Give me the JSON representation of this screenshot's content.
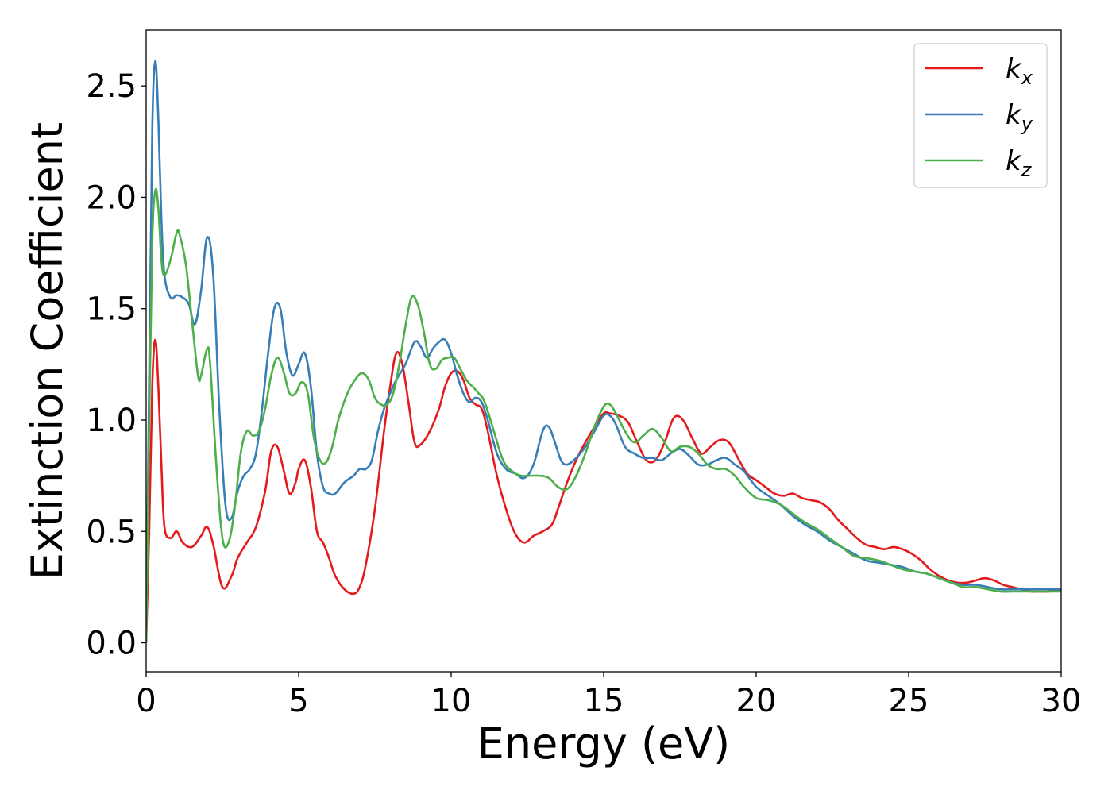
{
  "chart_data": {
    "type": "line",
    "title": "",
    "xlabel": "Energy (eV)",
    "ylabel": "Extinction Coefficient",
    "xlim": [
      0,
      30
    ],
    "ylim": [
      -0.13,
      2.75
    ],
    "xticks": [
      0,
      5,
      10,
      15,
      20,
      25,
      30
    ],
    "xtick_labels": [
      "0",
      "5",
      "10",
      "15",
      "20",
      "25",
      "30"
    ],
    "yticks": [
      0.0,
      0.5,
      1.0,
      1.5,
      2.0,
      2.5
    ],
    "ytick_labels": [
      "0.0",
      "0.5",
      "1.0",
      "1.5",
      "2.0",
      "2.5"
    ],
    "grid": false,
    "legend_position": "top-right",
    "series": [
      {
        "name": "k_x",
        "label_base": "k",
        "label_sub": "x",
        "color": "#e41a1c",
        "x": [
          0,
          0.1,
          0.2,
          0.3,
          0.4,
          0.5,
          0.6,
          0.8,
          1.0,
          1.2,
          1.5,
          1.8,
          2.0,
          2.2,
          2.5,
          2.8,
          3.0,
          3.3,
          3.6,
          3.9,
          4.1,
          4.3,
          4.5,
          4.7,
          4.9,
          5.0,
          5.2,
          5.4,
          5.6,
          5.8,
          6.0,
          6.2,
          6.5,
          6.8,
          7.0,
          7.2,
          7.5,
          7.8,
          8.0,
          8.2,
          8.4,
          8.6,
          8.8,
          9.0,
          9.3,
          9.6,
          9.8,
          10.0,
          10.2,
          10.4,
          10.6,
          10.8,
          11.0,
          11.2,
          11.5,
          11.8,
          12.1,
          12.4,
          12.7,
          13.0,
          13.3,
          13.5,
          13.8,
          14.1,
          14.4,
          14.7,
          15.0,
          15.2,
          15.5,
          15.8,
          16.1,
          16.4,
          16.7,
          17.0,
          17.3,
          17.6,
          17.9,
          18.2,
          18.5,
          18.8,
          19.1,
          19.4,
          19.7,
          20.0,
          20.3,
          20.6,
          20.9,
          21.2,
          21.5,
          21.8,
          22.1,
          22.4,
          22.7,
          23.0,
          23.3,
          23.6,
          23.9,
          24.2,
          24.5,
          24.8,
          25.1,
          25.4,
          25.7,
          26.0,
          26.3,
          26.6,
          26.9,
          27.2,
          27.5,
          27.8,
          28.1,
          28.4,
          28.7,
          29.0,
          29.3,
          29.6,
          30.0
        ],
        "y": [
          0.0,
          0.5,
          1.15,
          1.36,
          1.15,
          0.8,
          0.52,
          0.47,
          0.5,
          0.45,
          0.43,
          0.48,
          0.52,
          0.44,
          0.25,
          0.3,
          0.38,
          0.45,
          0.52,
          0.68,
          0.86,
          0.88,
          0.78,
          0.67,
          0.72,
          0.78,
          0.82,
          0.7,
          0.5,
          0.45,
          0.38,
          0.3,
          0.24,
          0.22,
          0.25,
          0.35,
          0.6,
          0.95,
          1.15,
          1.3,
          1.25,
          1.08,
          0.9,
          0.89,
          0.95,
          1.05,
          1.15,
          1.21,
          1.22,
          1.18,
          1.1,
          1.07,
          1.05,
          0.95,
          0.75,
          0.6,
          0.49,
          0.45,
          0.48,
          0.5,
          0.53,
          0.6,
          0.72,
          0.82,
          0.9,
          0.97,
          1.03,
          1.03,
          1.02,
          0.99,
          0.9,
          0.82,
          0.82,
          0.9,
          1.01,
          1.0,
          0.92,
          0.85,
          0.88,
          0.91,
          0.9,
          0.83,
          0.76,
          0.73,
          0.7,
          0.67,
          0.66,
          0.67,
          0.65,
          0.64,
          0.63,
          0.6,
          0.55,
          0.51,
          0.47,
          0.44,
          0.43,
          0.42,
          0.43,
          0.42,
          0.4,
          0.37,
          0.33,
          0.3,
          0.28,
          0.27,
          0.27,
          0.28,
          0.29,
          0.28,
          0.26,
          0.25,
          0.24,
          0.23,
          0.23,
          0.23,
          0.24
        ]
      },
      {
        "name": "k_y",
        "label_base": "k",
        "label_sub": "y",
        "color": "#377eb8",
        "x": [
          0,
          0.1,
          0.2,
          0.3,
          0.4,
          0.5,
          0.6,
          0.8,
          1.0,
          1.2,
          1.4,
          1.6,
          1.8,
          2.0,
          2.2,
          2.4,
          2.6,
          2.8,
          3.0,
          3.2,
          3.4,
          3.6,
          3.8,
          4.0,
          4.2,
          4.4,
          4.6,
          4.8,
          5.0,
          5.2,
          5.4,
          5.6,
          5.8,
          6.0,
          6.2,
          6.5,
          6.8,
          7.0,
          7.2,
          7.4,
          7.6,
          7.8,
          8.0,
          8.2,
          8.5,
          8.8,
          9.0,
          9.2,
          9.4,
          9.6,
          9.8,
          10.0,
          10.2,
          10.4,
          10.6,
          10.8,
          11.0,
          11.2,
          11.5,
          11.8,
          12.1,
          12.4,
          12.7,
          13.0,
          13.2,
          13.4,
          13.6,
          13.8,
          14.1,
          14.4,
          14.7,
          15.0,
          15.2,
          15.4,
          15.7,
          16.0,
          16.3,
          16.6,
          16.9,
          17.2,
          17.5,
          17.8,
          18.1,
          18.4,
          18.7,
          19.0,
          19.3,
          19.6,
          20.0,
          20.4,
          20.8,
          21.2,
          21.6,
          22.0,
          22.4,
          22.8,
          23.2,
          23.6,
          24.0,
          24.4,
          24.8,
          25.2,
          25.6,
          26.0,
          26.4,
          26.8,
          27.2,
          27.6,
          28.0,
          28.4,
          28.8,
          29.2,
          29.6,
          30.0
        ],
        "y": [
          0.0,
          1.2,
          2.3,
          2.61,
          2.35,
          1.9,
          1.65,
          1.55,
          1.56,
          1.55,
          1.52,
          1.43,
          1.58,
          1.82,
          1.65,
          1.05,
          0.62,
          0.56,
          0.68,
          0.75,
          0.78,
          0.85,
          1.05,
          1.3,
          1.5,
          1.5,
          1.3,
          1.2,
          1.25,
          1.3,
          1.15,
          0.85,
          0.7,
          0.67,
          0.67,
          0.72,
          0.75,
          0.78,
          0.78,
          0.82,
          0.95,
          1.05,
          1.12,
          1.18,
          1.25,
          1.35,
          1.33,
          1.28,
          1.32,
          1.35,
          1.36,
          1.3,
          1.2,
          1.12,
          1.08,
          1.1,
          1.08,
          1.0,
          0.85,
          0.78,
          0.76,
          0.74,
          0.8,
          0.95,
          0.97,
          0.9,
          0.82,
          0.8,
          0.83,
          0.88,
          0.95,
          1.02,
          1.02,
          0.98,
          0.88,
          0.85,
          0.83,
          0.83,
          0.82,
          0.85,
          0.87,
          0.84,
          0.8,
          0.8,
          0.82,
          0.83,
          0.8,
          0.77,
          0.7,
          0.66,
          0.62,
          0.57,
          0.53,
          0.5,
          0.46,
          0.43,
          0.4,
          0.37,
          0.36,
          0.35,
          0.34,
          0.32,
          0.31,
          0.29,
          0.27,
          0.26,
          0.26,
          0.25,
          0.24,
          0.24,
          0.24,
          0.24,
          0.24,
          0.24
        ]
      },
      {
        "name": "k_z",
        "label_base": "k",
        "label_sub": "z",
        "color": "#4daf4a",
        "x": [
          0,
          0.1,
          0.2,
          0.3,
          0.4,
          0.5,
          0.6,
          0.8,
          1.0,
          1.1,
          1.3,
          1.5,
          1.7,
          1.8,
          2.0,
          2.1,
          2.3,
          2.5,
          2.7,
          2.9,
          3.1,
          3.3,
          3.5,
          3.7,
          3.9,
          4.1,
          4.3,
          4.5,
          4.7,
          4.9,
          5.1,
          5.3,
          5.5,
          5.7,
          5.9,
          6.1,
          6.3,
          6.6,
          6.9,
          7.1,
          7.3,
          7.5,
          7.7,
          7.9,
          8.1,
          8.3,
          8.5,
          8.7,
          8.9,
          9.1,
          9.3,
          9.5,
          9.7,
          9.9,
          10.1,
          10.3,
          10.5,
          10.7,
          10.9,
          11.1,
          11.4,
          11.7,
          12.0,
          12.3,
          12.6,
          12.9,
          13.2,
          13.5,
          13.8,
          14.1,
          14.4,
          14.7,
          15.0,
          15.2,
          15.4,
          15.7,
          16.0,
          16.3,
          16.6,
          16.9,
          17.2,
          17.5,
          17.8,
          18.1,
          18.4,
          18.7,
          19.0,
          19.3,
          19.6,
          20.0,
          20.4,
          20.8,
          21.2,
          21.6,
          22.0,
          22.4,
          22.8,
          23.2,
          23.6,
          24.0,
          24.4,
          24.8,
          25.2,
          25.6,
          26.0,
          26.4,
          26.8,
          27.2,
          27.6,
          28.0,
          28.4,
          28.8,
          29.2,
          29.6,
          30.0
        ],
        "y": [
          0.0,
          1.0,
          1.8,
          2.03,
          1.95,
          1.72,
          1.65,
          1.72,
          1.84,
          1.83,
          1.7,
          1.45,
          1.2,
          1.2,
          1.32,
          1.25,
          0.8,
          0.47,
          0.45,
          0.6,
          0.85,
          0.95,
          0.93,
          0.95,
          1.05,
          1.2,
          1.28,
          1.22,
          1.12,
          1.12,
          1.17,
          1.12,
          0.92,
          0.82,
          0.81,
          0.88,
          1.0,
          1.12,
          1.19,
          1.21,
          1.18,
          1.1,
          1.07,
          1.07,
          1.12,
          1.25,
          1.42,
          1.55,
          1.52,
          1.4,
          1.25,
          1.23,
          1.27,
          1.28,
          1.28,
          1.23,
          1.18,
          1.15,
          1.12,
          1.08,
          0.95,
          0.82,
          0.77,
          0.75,
          0.75,
          0.75,
          0.74,
          0.7,
          0.69,
          0.75,
          0.85,
          0.97,
          1.06,
          1.07,
          1.03,
          0.95,
          0.9,
          0.93,
          0.96,
          0.92,
          0.86,
          0.88,
          0.88,
          0.85,
          0.8,
          0.78,
          0.78,
          0.75,
          0.7,
          0.65,
          0.64,
          0.62,
          0.58,
          0.54,
          0.51,
          0.47,
          0.43,
          0.39,
          0.38,
          0.37,
          0.35,
          0.33,
          0.32,
          0.31,
          0.29,
          0.27,
          0.25,
          0.25,
          0.24,
          0.23,
          0.23,
          0.23,
          0.23,
          0.23,
          0.23
        ]
      }
    ]
  }
}
